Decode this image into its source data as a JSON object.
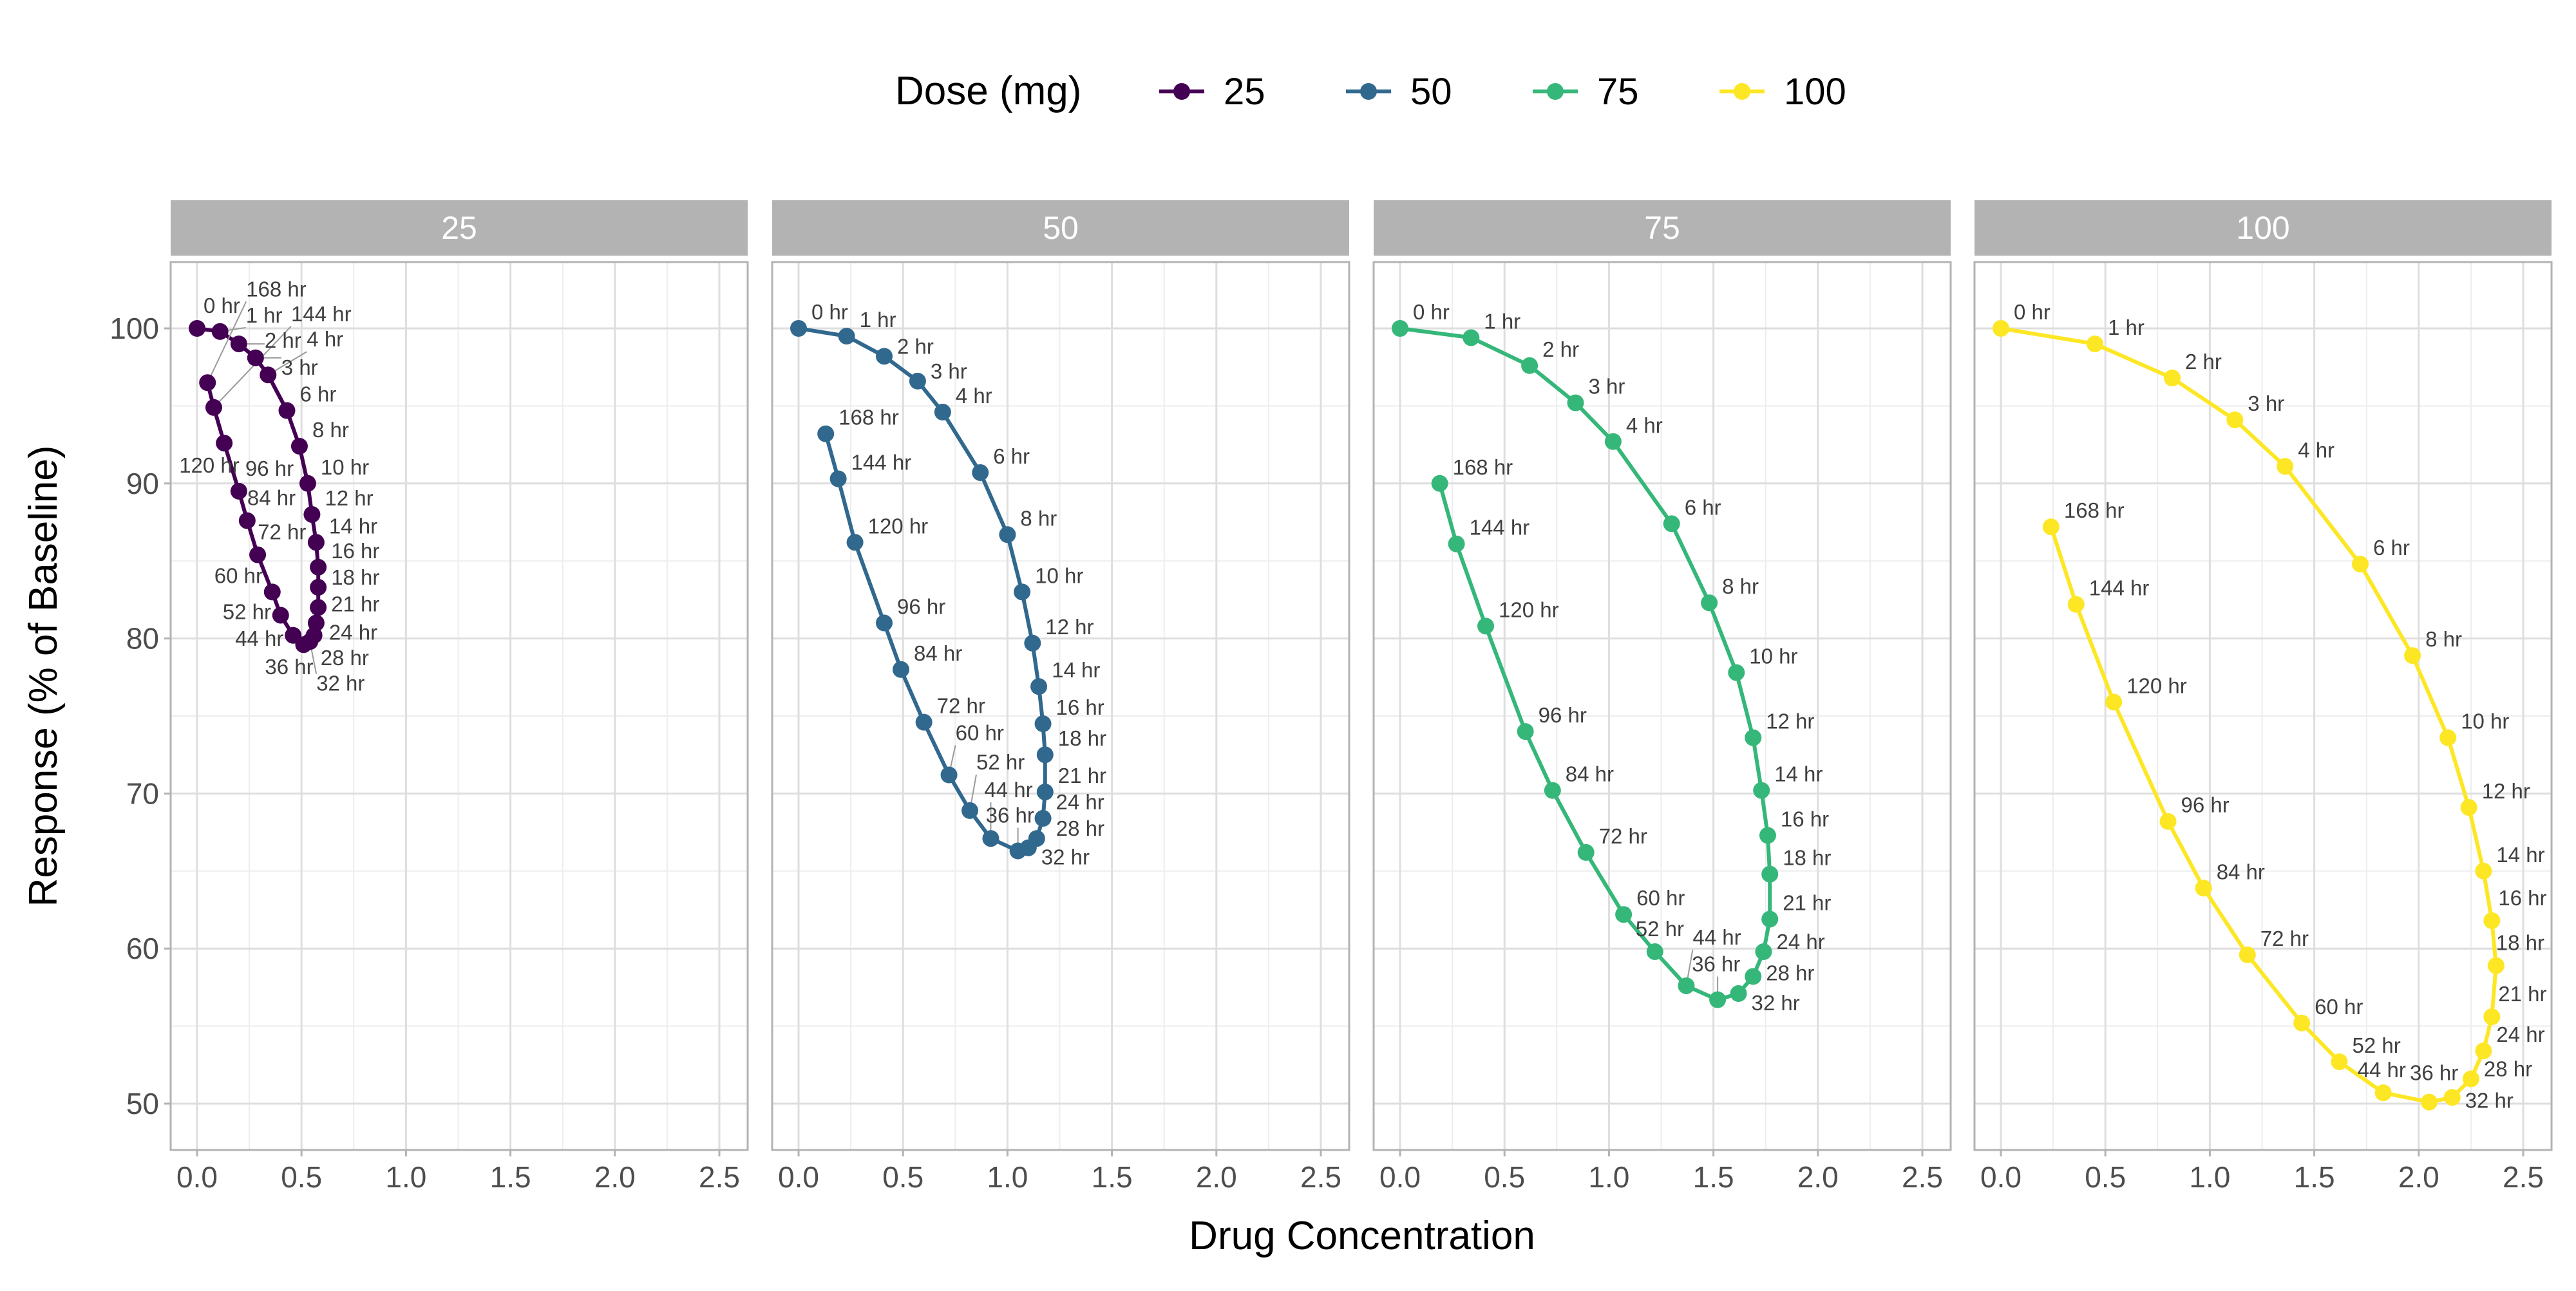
{
  "chart_data": {
    "type": "line",
    "facet_by": "Dose (mg)",
    "xlabel": "Drug Concentration",
    "ylabel": "Response (% of Baseline)",
    "xlim": [
      0,
      2.5
    ],
    "ylim": [
      50,
      100
    ],
    "x_ticks": [
      "0.0",
      "0.5",
      "1.0",
      "1.5",
      "2.0",
      "2.5"
    ],
    "y_ticks": [
      "50",
      "60",
      "70",
      "80",
      "90",
      "100"
    ],
    "grid": true,
    "legend": {
      "title": "Dose (mg)",
      "position": "top",
      "entries": [
        "25",
        "50",
        "75",
        "100"
      ]
    },
    "point_labels": [
      "0 hr",
      "1 hr",
      "2 hr",
      "3 hr",
      "4 hr",
      "6 hr",
      "8 hr",
      "10 hr",
      "12 hr",
      "14 hr",
      "16 hr",
      "18 hr",
      "21 hr",
      "24 hr",
      "28 hr",
      "32 hr",
      "36 hr",
      "44 hr",
      "52 hr",
      "60 hr",
      "72 hr",
      "84 hr",
      "96 hr",
      "120 hr",
      "144 hr",
      "168 hr"
    ],
    "series": [
      {
        "name": "25",
        "color": "#440154",
        "x": [
          0,
          0.11,
          0.2,
          0.28,
          0.34,
          0.43,
          0.49,
          0.53,
          0.55,
          0.57,
          0.58,
          0.58,
          0.58,
          0.57,
          0.56,
          0.54,
          0.51,
          0.46,
          0.4,
          0.36,
          0.29,
          0.24,
          0.2,
          0.13,
          0.08,
          0.05
        ],
        "y": [
          100,
          99.8,
          99.0,
          98.1,
          97.0,
          94.7,
          92.4,
          90.0,
          88.0,
          86.2,
          84.6,
          83.3,
          82.0,
          81.0,
          80.2,
          79.8,
          79.6,
          80.2,
          81.5,
          83.0,
          85.4,
          87.6,
          89.5,
          92.6,
          94.9,
          96.5
        ]
      },
      {
        "name": "50",
        "color": "#31688E",
        "x": [
          0,
          0.23,
          0.41,
          0.57,
          0.69,
          0.87,
          1.0,
          1.07,
          1.12,
          1.15,
          1.17,
          1.18,
          1.18,
          1.17,
          1.14,
          1.1,
          1.05,
          0.92,
          0.82,
          0.72,
          0.6,
          0.49,
          0.41,
          0.27,
          0.19,
          0.13
        ],
        "y": [
          100,
          99.5,
          98.2,
          96.6,
          94.6,
          90.7,
          86.7,
          83.0,
          79.7,
          76.9,
          74.5,
          72.5,
          70.1,
          68.4,
          67.1,
          66.5,
          66.3,
          67.1,
          68.9,
          71.2,
          74.6,
          78.0,
          81.0,
          86.2,
          90.3,
          93.2
        ]
      },
      {
        "name": "75",
        "color": "#35B779",
        "x": [
          0,
          0.34,
          0.62,
          0.84,
          1.02,
          1.3,
          1.48,
          1.61,
          1.69,
          1.73,
          1.76,
          1.77,
          1.77,
          1.74,
          1.69,
          1.62,
          1.52,
          1.37,
          1.22,
          1.07,
          0.89,
          0.73,
          0.6,
          0.41,
          0.27,
          0.19
        ],
        "y": [
          100,
          99.4,
          97.6,
          95.2,
          92.7,
          87.4,
          82.3,
          77.8,
          73.6,
          70.2,
          67.3,
          64.8,
          61.9,
          59.8,
          58.2,
          57.1,
          56.7,
          57.6,
          59.8,
          62.2,
          66.2,
          70.2,
          74.0,
          80.8,
          86.1,
          90.0
        ]
      },
      {
        "name": "100",
        "color": "#FDE725",
        "x": [
          0,
          0.45,
          0.82,
          1.12,
          1.36,
          1.72,
          1.97,
          2.14,
          2.24,
          2.31,
          2.35,
          2.37,
          2.35,
          2.31,
          2.25,
          2.16,
          2.05,
          1.83,
          1.62,
          1.44,
          1.18,
          0.97,
          0.8,
          0.54,
          0.36,
          0.24
        ],
        "y": [
          100,
          99.0,
          96.8,
          94.1,
          91.1,
          84.8,
          78.9,
          73.6,
          69.1,
          65.0,
          61.8,
          58.9,
          55.6,
          53.4,
          51.6,
          50.4,
          50.1,
          50.7,
          52.7,
          55.2,
          59.6,
          63.9,
          68.2,
          75.9,
          82.2,
          87.2
        ]
      }
    ]
  }
}
